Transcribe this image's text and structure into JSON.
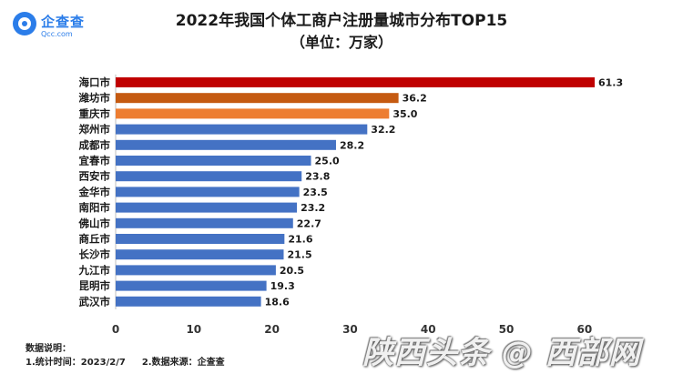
{
  "logo": {
    "name": "企查查",
    "sub": "Qcc.com"
  },
  "watermark": "陕西头条 @ 西部网",
  "notes": {
    "heading": "数据说明：",
    "item1": "1.统计时间：2023/2/7",
    "item2": "2.数据来源：企查查"
  },
  "chart_data": {
    "type": "bar",
    "orientation": "horizontal",
    "title": "2022年我国个体工商户注册量城市分布TOP15",
    "subtitle": "（单位：万家）",
    "categories": [
      "海口市",
      "潍坊市",
      "重庆市",
      "郑州市",
      "成都市",
      "宜春市",
      "西安市",
      "金华市",
      "南阳市",
      "佛山市",
      "商丘市",
      "长沙市",
      "九江市",
      "昆明市",
      "武汉市"
    ],
    "values": [
      61.3,
      36.2,
      35.0,
      32.2,
      28.2,
      25.0,
      23.8,
      23.5,
      23.2,
      22.7,
      21.6,
      21.5,
      20.5,
      19.3,
      18.6
    ],
    "value_labels": [
      "61.3",
      "36.2",
      "35.0",
      "32.2",
      "28.2",
      "25.0",
      "23.8",
      "23.5",
      "23.2",
      "22.7",
      "21.6",
      "21.5",
      "20.5",
      "19.3",
      "18.6"
    ],
    "bar_colors": [
      "#c00000",
      "#c55a11",
      "#ed7d31",
      "#4472c4",
      "#4472c4",
      "#4472c4",
      "#4472c4",
      "#4472c4",
      "#4472c4",
      "#4472c4",
      "#4472c4",
      "#4472c4",
      "#4472c4",
      "#4472c4",
      "#4472c4"
    ],
    "xlim": [
      0,
      61.3
    ],
    "x_ticks": [
      "0",
      "10",
      "20",
      "30",
      "40",
      "50",
      "60"
    ],
    "grid": false
  }
}
